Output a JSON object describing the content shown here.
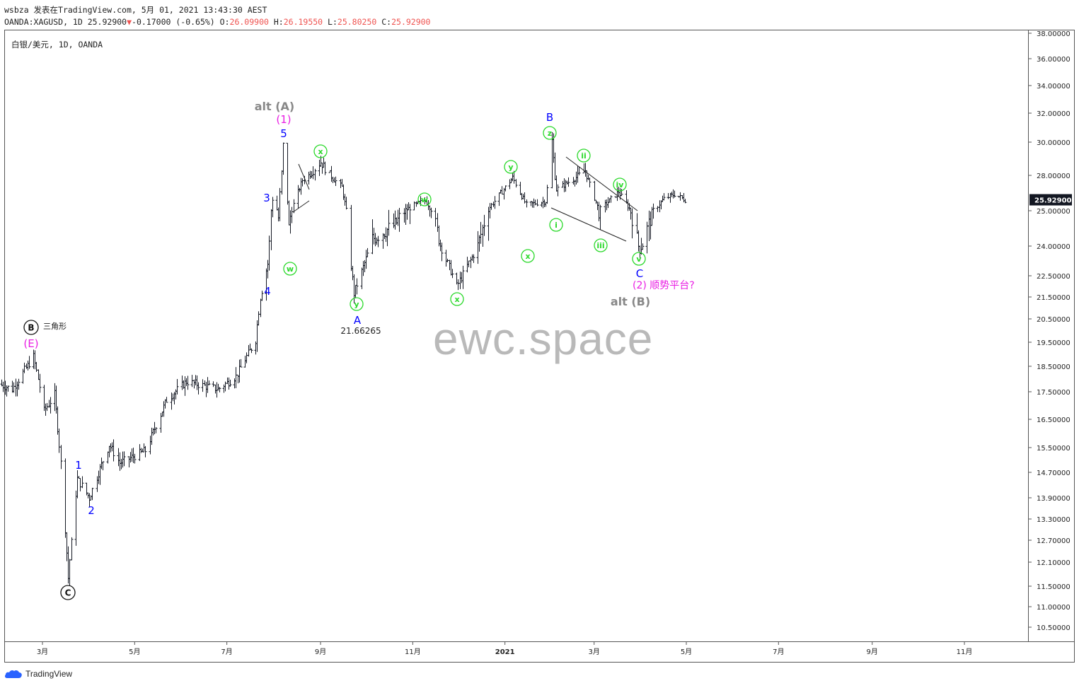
{
  "header": {
    "line1": "wsbza 发表在TradingView.com, 5月 01, 2021 13:43:30 AEST",
    "symbol": "OANDA:XAGUSD, 1D 25.92900",
    "arrow": "▼",
    "change": "-0.17000 (-0.65%)",
    "o_label": "O:",
    "o_val": "26.09900",
    "h_label": "H:",
    "h_val": "26.19550",
    "l_label": "L:",
    "l_val": "25.80250",
    "c_label": "C:",
    "c_val": "25.92900"
  },
  "symbol_label": "白银/美元, 1D, OANDA",
  "watermark": "ewc.space",
  "footer": {
    "brand": "TradingView"
  },
  "colors": {
    "candle": "#131722",
    "wave_blue": "#0000ff",
    "wave_magenta": "#e91ee3",
    "wave_green": "#2bd92b",
    "wave_gray": "#888888",
    "price_tag_bg": "#131722"
  },
  "chart_data": {
    "type": "ohlc",
    "log_scale": true,
    "grid": false,
    "x_axis_ticks": [
      {
        "label": "3月",
        "date": "2020-03-01"
      },
      {
        "label": "5月",
        "date": "2020-05-01"
      },
      {
        "label": "7月",
        "date": "2020-07-01"
      },
      {
        "label": "9月",
        "date": "2020-09-01"
      },
      {
        "label": "11月",
        "date": "2020-11-01"
      },
      {
        "label": "2021",
        "date": "2021-01-01"
      },
      {
        "label": "3月",
        "date": "2021-03-01"
      },
      {
        "label": "5月",
        "date": "2021-05-01"
      },
      {
        "label": "7月",
        "date": "2021-07-01"
      },
      {
        "label": "9月",
        "date": "2021-09-01"
      },
      {
        "label": "11月",
        "date": "2021-11-01"
      }
    ],
    "y_axis_ticks": [
      "38.00000",
      "36.00000",
      "34.00000",
      "32.00000",
      "30.00000",
      "28.00000",
      "25.00000",
      "24.00000",
      "22.50000",
      "21.50000",
      "20.50000",
      "19.50000",
      "18.50000",
      "17.50000",
      "16.50000",
      "15.50000",
      "14.70000",
      "13.90000",
      "13.30000",
      "12.70000",
      "12.10000",
      "11.50000",
      "11.00000",
      "10.50000"
    ],
    "last_price": "25.92900",
    "price_path": [
      {
        "date": "2020-02-01",
        "price": 17.8
      },
      {
        "date": "2020-02-10",
        "price": 17.6
      },
      {
        "date": "2020-02-24",
        "price": 18.9
      },
      {
        "date": "2020-03-02",
        "price": 16.8
      },
      {
        "date": "2020-03-09",
        "price": 17.4
      },
      {
        "date": "2020-03-13",
        "price": 15.0
      },
      {
        "date": "2020-03-18",
        "price": 11.7
      },
      {
        "date": "2020-03-24",
        "price": 14.5
      },
      {
        "date": "2020-04-01",
        "price": 13.9
      },
      {
        "date": "2020-04-14",
        "price": 15.6
      },
      {
        "date": "2020-04-21",
        "price": 15.0
      },
      {
        "date": "2020-05-08",
        "price": 15.4
      },
      {
        "date": "2020-05-22",
        "price": 17.2
      },
      {
        "date": "2020-06-04",
        "price": 17.9
      },
      {
        "date": "2020-06-25",
        "price": 17.6
      },
      {
        "date": "2020-07-07",
        "price": 18.1
      },
      {
        "date": "2020-07-20",
        "price": 19.6
      },
      {
        "date": "2020-07-23",
        "price": 21.5
      },
      {
        "date": "2020-07-28",
        "price": 23.1
      },
      {
        "date": "2020-07-31",
        "price": 26.0
      },
      {
        "date": "2020-08-04",
        "price": 24.8
      },
      {
        "date": "2020-08-07",
        "price": 29.8
      },
      {
        "date": "2020-08-11",
        "price": 24.5
      },
      {
        "date": "2020-08-20",
        "price": 27.6
      },
      {
        "date": "2020-09-01",
        "price": 28.8
      },
      {
        "date": "2020-09-15",
        "price": 27.0
      },
      {
        "date": "2020-09-23",
        "price": 21.66265
      },
      {
        "date": "2020-10-05",
        "price": 24.2
      },
      {
        "date": "2020-10-20",
        "price": 24.6
      },
      {
        "date": "2020-11-09",
        "price": 25.9
      },
      {
        "date": "2020-11-30",
        "price": 22.0
      },
      {
        "date": "2020-12-14",
        "price": 24.0
      },
      {
        "date": "2021-01-06",
        "price": 27.8
      },
      {
        "date": "2021-01-15",
        "price": 25.5
      },
      {
        "date": "2021-01-28",
        "price": 25.8
      },
      {
        "date": "2021-02-01",
        "price": 30.1
      },
      {
        "date": "2021-02-04",
        "price": 26.8
      },
      {
        "date": "2021-02-23",
        "price": 28.3
      },
      {
        "date": "2021-03-04",
        "price": 25.0
      },
      {
        "date": "2021-03-17",
        "price": 26.6
      },
      {
        "date": "2021-03-31",
        "price": 23.8
      },
      {
        "date": "2021-04-16",
        "price": 26.0
      },
      {
        "date": "2021-04-23",
        "price": 26.4
      },
      {
        "date": "2021-04-30",
        "price": 25.929
      }
    ],
    "wave_labels": [
      {
        "text": "ⓑ",
        "kind": "circle-black",
        "label": "B"
      },
      {
        "text": "三角形"
      },
      {
        "text": "(E)"
      },
      {
        "text": "C",
        "kind": "circle-black"
      },
      {
        "text": "1"
      },
      {
        "text": "2"
      },
      {
        "text": "3"
      },
      {
        "text": "4"
      },
      {
        "text": "5"
      },
      {
        "text": "(1)"
      },
      {
        "text": "alt (A)"
      },
      {
        "text": "w"
      },
      {
        "text": "x"
      },
      {
        "text": "y"
      },
      {
        "text": "A"
      },
      {
        "text": "21.66265"
      },
      {
        "text": "w"
      },
      {
        "text": "x"
      },
      {
        "text": "y"
      },
      {
        "text": "x"
      },
      {
        "text": "z"
      },
      {
        "text": "B"
      },
      {
        "text": "i"
      },
      {
        "text": "ii"
      },
      {
        "text": "iii"
      },
      {
        "text": "iv"
      },
      {
        "text": "v"
      },
      {
        "text": "C"
      },
      {
        "text": "(2) 顺势平台?"
      },
      {
        "text": "alt (B)"
      }
    ]
  }
}
